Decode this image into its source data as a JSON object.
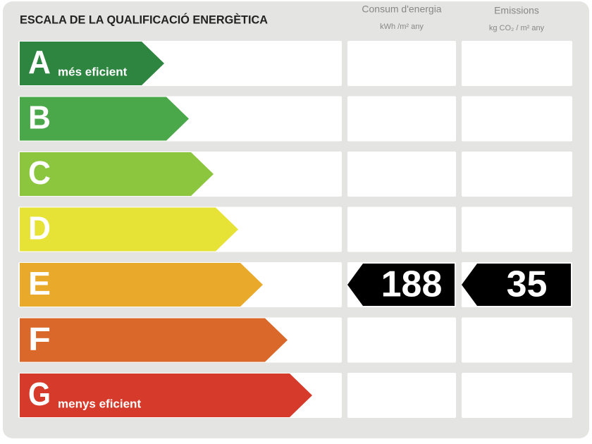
{
  "title": "ESCALA DE LA QUALIFICACIÓ ENERGÈTICA",
  "columns": [
    {
      "title": "Consum d'energia",
      "unit": "kWh /m² any"
    },
    {
      "title": "Emissions",
      "unit": "kg CO₂ / m² any"
    }
  ],
  "rows": [
    {
      "letter": "A",
      "note": "més eficient",
      "color": "#2e8540"
    },
    {
      "letter": "B",
      "color": "#4aa84a"
    },
    {
      "letter": "C",
      "color": "#8cc63f"
    },
    {
      "letter": "D",
      "color": "#e6e236"
    },
    {
      "letter": "E",
      "color": "#e9a92a",
      "energy": 188,
      "emissions": 35
    },
    {
      "letter": "F",
      "color": "#d9682a"
    },
    {
      "letter": "G",
      "note": "menys eficient",
      "color": "#d63a2a"
    }
  ]
}
